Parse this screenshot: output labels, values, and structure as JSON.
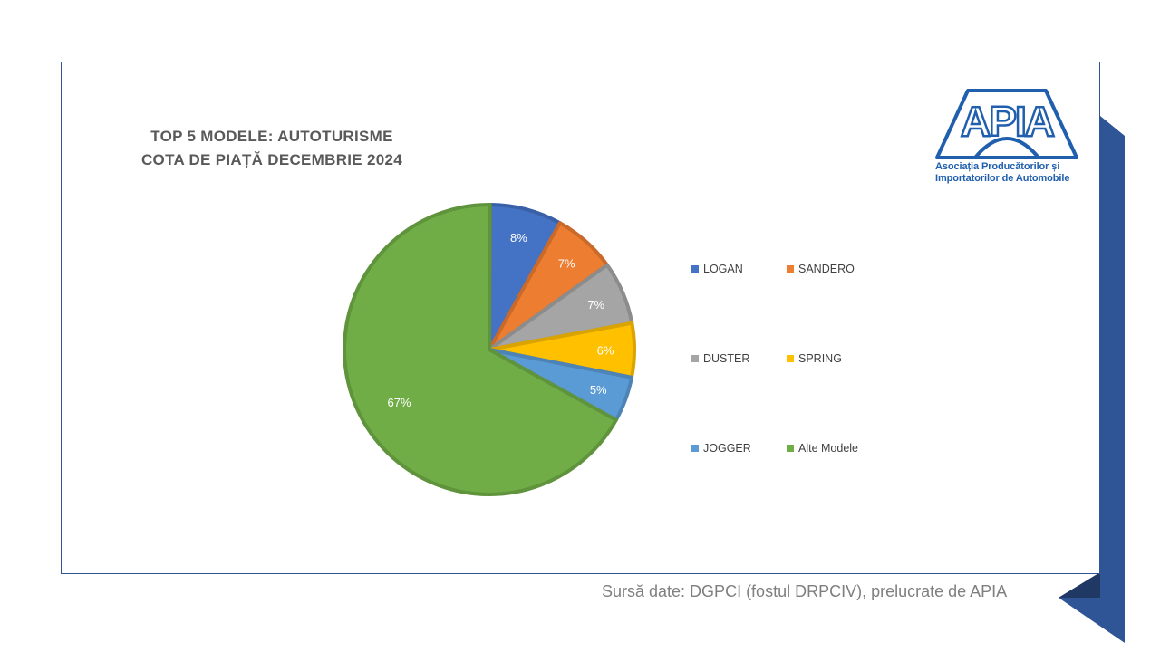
{
  "chart_data": {
    "type": "pie",
    "title_lines": [
      "TOP 5 MODELE: AUTOTURISME",
      "COTA DE PIAȚĂ DECEMBRIE 2024"
    ],
    "slices": [
      {
        "label": "LOGAN",
        "value": 8,
        "display": "8%",
        "color": "#4472c4"
      },
      {
        "label": "SANDERO",
        "value": 7,
        "display": "7%",
        "color": "#ed7d31"
      },
      {
        "label": "DUSTER",
        "value": 7,
        "display": "7%",
        "color": "#a5a5a5"
      },
      {
        "label": "SPRING",
        "value": 6,
        "display": "6%",
        "color": "#ffc000"
      },
      {
        "label": "JOGGER",
        "value": 5,
        "display": "5%",
        "color": "#5b9bd5"
      },
      {
        "label": "Alte Modele",
        "value": 67,
        "display": "67%",
        "color": "#70ad47"
      }
    ],
    "legend_position": "right"
  },
  "logo": {
    "text": "APIA",
    "subtitle_line1": "Asociația Producătorilor și",
    "subtitle_line2": "Importatorilor de Automobile",
    "color": "#1f5fae"
  },
  "source": "Sursă date: DGPCI (fostul DRPCIV), prelucrate de APIA",
  "accent_color": "#2f5597"
}
